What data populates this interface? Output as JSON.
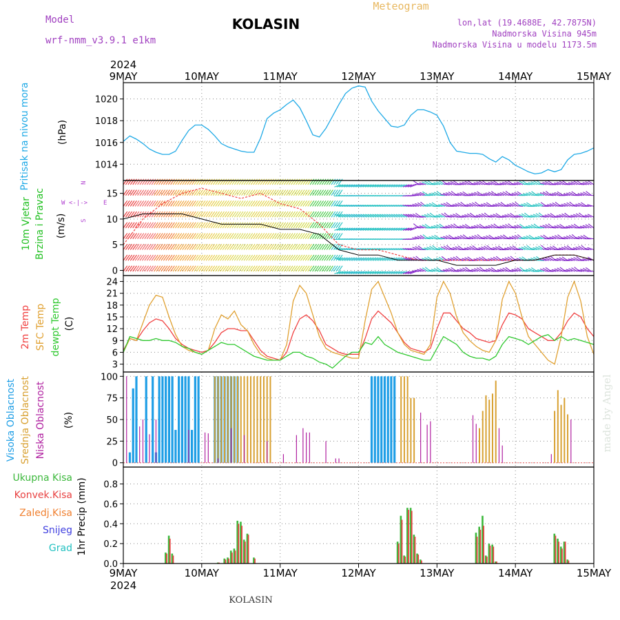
{
  "header": {
    "model_label": "Model",
    "model_name": "wrf-nmm_v3.9.1 e1km",
    "station": "KOLASIN",
    "product": "Meteogram",
    "lonlat": "lon,lat (19.4688E, 42.7875N)",
    "altitude": "Nadmorska Visina 945m",
    "model_altitude": "Nadmorska Visina u modelu 1173.5m",
    "year": "2024",
    "footer_station": "KOLASIN",
    "watermark": "made by Angel"
  },
  "colors": {
    "pressure": "#1ea9e6",
    "temp2m": "#f04040",
    "sfc": "#e0a030",
    "dewpt": "#2ec82e",
    "high_cloud": "#1e9ee6",
    "mid_cloud": "#d8a030",
    "low_cloud": "#b020a0",
    "total_precip": "#3cb83c",
    "conv_precip": "#e84040",
    "frozen_precip": "#f08030",
    "snow": "#4040e0",
    "graupel": "#20c0c0",
    "wind_label": "#22c022",
    "compass": "#b040d0",
    "meta": "#a040c0",
    "product": "#e8b860"
  },
  "chart_data": [
    {
      "type": "line",
      "panel": "pressure",
      "ylabel_series": "Pritisak na nivou mora",
      "ylabel_unit": "(hPa)",
      "ylim": [
        1012.5,
        1021.5
      ],
      "yticks": [
        1014,
        1016,
        1018,
        1020
      ],
      "xlim": [
        0,
        144
      ],
      "xticks": [
        "9MAY",
        "10MAY",
        "11MAY",
        "12MAY",
        "13MAY",
        "14MAY",
        "15MAY"
      ],
      "grid": true,
      "x": [
        0,
        2,
        4,
        6,
        8,
        10,
        12,
        14,
        16,
        18,
        20,
        22,
        24,
        26,
        28,
        30,
        32,
        34,
        36,
        38,
        40,
        42,
        44,
        46,
        48,
        50,
        52,
        54,
        56,
        58,
        60,
        62,
        64,
        66,
        68,
        70,
        72,
        74,
        76,
        78,
        80,
        82,
        84,
        86,
        88,
        90,
        92,
        94,
        96,
        98,
        100,
        102,
        104,
        106,
        108,
        110,
        112,
        114,
        116,
        118,
        120,
        122,
        124,
        126,
        128,
        130,
        132,
        134,
        136,
        138,
        140,
        142,
        144
      ],
      "values": [
        1016.1,
        1016.6,
        1016.3,
        1015.9,
        1015.4,
        1015.1,
        1014.9,
        1014.9,
        1015.2,
        1016.2,
        1017.1,
        1017.6,
        1017.6,
        1017.2,
        1016.6,
        1015.9,
        1015.6,
        1015.4,
        1015.2,
        1015.1,
        1015.1,
        1016.4,
        1018.2,
        1018.7,
        1019.0,
        1019.5,
        1019.9,
        1019.2,
        1018.0,
        1016.7,
        1016.5,
        1017.3,
        1018.4,
        1019.5,
        1020.5,
        1021.0,
        1021.2,
        1021.1,
        1019.8,
        1018.9,
        1018.2,
        1017.5,
        1017.4,
        1017.6,
        1018.5,
        1019.0,
        1019.0,
        1018.8,
        1018.5,
        1017.5,
        1016.0,
        1015.2,
        1015.1,
        1015.0,
        1015.0,
        1014.9,
        1014.5,
        1014.2,
        1014.7,
        1014.4,
        1013.9,
        1013.6,
        1013.3,
        1013.1,
        1013.2,
        1013.5,
        1013.3,
        1013.5,
        1014.4,
        1014.9,
        1015.0,
        1015.2,
        1015.5
      ]
    },
    {
      "type": "line",
      "panel": "wind",
      "ylabel_series": [
        "10m Vjetar",
        "Brzina i Pravac"
      ],
      "ylabel_unit": "(m/s)",
      "compass_labels": [
        "W",
        "<-|->",
        "E",
        "S",
        "N"
      ],
      "ylim": [
        -1,
        17.5
      ],
      "yticks": [
        0,
        5,
        10,
        15
      ],
      "xlim": [
        0,
        144
      ],
      "grid": true,
      "x": [
        0,
        6,
        12,
        18,
        24,
        30,
        36,
        42,
        48,
        54,
        60,
        66,
        72,
        78,
        84,
        90,
        96,
        102,
        108,
        114,
        120,
        126,
        132,
        138,
        144
      ],
      "series": [
        {
          "key": "gust",
          "values": [
            5,
            10,
            13,
            15,
            16,
            15,
            14,
            15,
            13,
            12,
            9,
            5,
            4,
            4,
            3,
            2,
            2,
            2,
            2,
            2,
            2,
            2,
            3,
            3,
            2
          ]
        },
        {
          "key": "speed",
          "values": [
            10,
            11,
            11,
            11,
            10,
            9,
            9,
            9,
            8,
            8,
            7,
            4,
            3,
            3,
            2,
            2,
            2,
            1,
            1,
            1,
            2,
            2,
            3,
            3,
            2
          ]
        }
      ],
      "barb_colors": [
        "#e83030",
        "#f06060",
        "#f07830",
        "#f0a030",
        "#e8c840",
        "#e0d040",
        "#d8d850",
        "#e0d040",
        "#d0d040",
        "#d0d840",
        "#40c840",
        "#20c0c0",
        "#20b8c8",
        "#20c0c0",
        "#30c0c8",
        "#8020c8",
        "#20c0c0",
        "#8020c8",
        "#8020c8",
        "#8020c8",
        "#8020c8",
        "#20c0c0",
        "#8020c8",
        "#8020c8",
        "#8020c8"
      ]
    },
    {
      "type": "line",
      "panel": "temperature",
      "ylabel_series": [
        "2m Temp",
        "SFC Temp",
        "dewpt Temp"
      ],
      "ylabel_unit": "(C)",
      "ylim": [
        1,
        25.5
      ],
      "yticks": [
        3,
        6,
        9,
        12,
        15,
        18,
        21,
        24
      ],
      "xlim": [
        0,
        144
      ],
      "grid": true,
      "x": [
        0,
        2,
        4,
        6,
        8,
        10,
        12,
        14,
        16,
        18,
        20,
        22,
        24,
        26,
        28,
        30,
        32,
        34,
        36,
        38,
        40,
        42,
        44,
        46,
        48,
        50,
        52,
        54,
        56,
        58,
        60,
        62,
        64,
        66,
        68,
        70,
        72,
        74,
        76,
        78,
        80,
        82,
        84,
        86,
        88,
        90,
        92,
        94,
        96,
        98,
        100,
        102,
        104,
        106,
        108,
        110,
        112,
        114,
        116,
        118,
        120,
        122,
        124,
        126,
        128,
        130,
        132,
        134,
        136,
        138,
        140,
        142,
        144
      ],
      "series": [
        {
          "name": "2m Temp",
          "key": "temp2m",
          "values": [
            6.5,
            9.5,
            9.0,
            11.5,
            13.5,
            14.5,
            14.0,
            12.0,
            9.5,
            8.0,
            7.0,
            6.5,
            6.0,
            6.5,
            8.5,
            11.0,
            12.0,
            12.0,
            11.5,
            11.5,
            9.0,
            6.5,
            5.0,
            4.5,
            4.0,
            6.0,
            11.0,
            14.5,
            15.5,
            14.0,
            11.5,
            8.0,
            7.0,
            6.0,
            5.5,
            5.5,
            5.5,
            9.5,
            14.5,
            16.5,
            15.0,
            13.5,
            11.0,
            8.5,
            7.0,
            6.5,
            6.0,
            7.0,
            12.0,
            16.0,
            16.0,
            14.0,
            12.0,
            11.0,
            9.5,
            9.0,
            8.5,
            9.0,
            13.0,
            16.0,
            15.5,
            14.5,
            12.0,
            11.0,
            10.0,
            9.0,
            9.0,
            11.0,
            14.0,
            16.0,
            15.0,
            12.0,
            10.0
          ]
        },
        {
          "name": "SFC Temp",
          "key": "sfc",
          "values": [
            6.0,
            9.5,
            9.0,
            13.5,
            18.0,
            20.5,
            20.0,
            15.0,
            10.5,
            7.5,
            6.5,
            6.0,
            5.5,
            6.5,
            12.0,
            15.5,
            14.5,
            16.5,
            13.0,
            11.5,
            8.0,
            5.5,
            4.5,
            4.0,
            4.0,
            8.0,
            19.0,
            23.0,
            21.0,
            15.5,
            10.0,
            7.0,
            6.0,
            5.5,
            5.0,
            4.5,
            4.5,
            14.0,
            22.0,
            24.0,
            20.0,
            16.0,
            11.0,
            8.0,
            6.5,
            6.0,
            5.5,
            8.0,
            20.0,
            24.0,
            21.0,
            15.0,
            11.0,
            9.0,
            7.5,
            6.5,
            6.0,
            9.0,
            19.5,
            24.0,
            21.0,
            15.0,
            10.0,
            8.0,
            6.0,
            4.0,
            3.0,
            10.0,
            20.0,
            24.0,
            19.0,
            10.0,
            5.5
          ]
        },
        {
          "name": "dewpt Temp",
          "key": "dewpt",
          "values": [
            6.0,
            10.0,
            9.5,
            9.0,
            9.0,
            9.5,
            9.0,
            9.0,
            8.5,
            7.5,
            7.0,
            6.0,
            5.5,
            6.5,
            7.5,
            8.5,
            8.0,
            8.0,
            7.0,
            6.0,
            5.0,
            4.5,
            4.0,
            4.0,
            4.0,
            5.0,
            6.0,
            6.0,
            5.0,
            4.5,
            3.5,
            3.0,
            2.0,
            3.5,
            5.0,
            6.0,
            6.0,
            8.5,
            8.0,
            10.0,
            8.0,
            7.0,
            6.0,
            5.5,
            5.0,
            4.5,
            4.0,
            4.0,
            7.0,
            10.0,
            9.0,
            8.0,
            6.0,
            5.0,
            4.5,
            4.5,
            4.0,
            5.0,
            8.0,
            10.0,
            9.5,
            9.0,
            8.0,
            9.0,
            10.0,
            10.5,
            9.0,
            10.0,
            9.0,
            9.5,
            9.0,
            8.5,
            8.0
          ]
        }
      ]
    },
    {
      "type": "bar",
      "panel": "clouds",
      "ylabel_series": [
        "Visoka Oblacnost",
        "Srednja Oblacnost",
        "Niska Oblacnost"
      ],
      "ylabel_unit": "(%)",
      "ylim": [
        -5,
        105
      ],
      "yticks": [
        0,
        25,
        50,
        75,
        100
      ],
      "xlim": [
        0,
        144
      ],
      "grid": true,
      "series": [
        {
          "name": "Visoka Oblacnost",
          "key": "high_cloud",
          "x": [
            2,
            3,
            4,
            7,
            9,
            10,
            11,
            12,
            13,
            14,
            15,
            16,
            17,
            18,
            19,
            20,
            21,
            22,
            23,
            28,
            29,
            30,
            31,
            32,
            33,
            34,
            35,
            76,
            77,
            78,
            79,
            80,
            81,
            82,
            83
          ],
          "values": [
            12,
            86,
            100,
            100,
            100,
            12,
            100,
            100,
            100,
            100,
            100,
            38,
            100,
            100,
            100,
            100,
            38,
            100,
            100,
            100,
            100,
            100,
            100,
            100,
            100,
            100,
            100,
            100,
            100,
            100,
            100,
            100,
            100,
            100,
            100
          ]
        },
        {
          "name": "Srednja Oblacnost",
          "key": "mid_cloud",
          "x": [
            28,
            29,
            30,
            31,
            32,
            33,
            34,
            35,
            36,
            37,
            38,
            39,
            40,
            41,
            42,
            43,
            44,
            45,
            85,
            86,
            87,
            88,
            89,
            109,
            110,
            111,
            112,
            113,
            114,
            132,
            133,
            134,
            135,
            136
          ],
          "values": [
            100,
            100,
            100,
            100,
            100,
            100,
            100,
            100,
            100,
            100,
            100,
            100,
            100,
            100,
            100,
            100,
            100,
            100,
            100,
            100,
            100,
            75,
            75,
            40,
            60,
            78,
            73,
            80,
            95,
            60,
            84,
            67,
            75,
            56
          ]
        },
        {
          "name": "Niska Oblacnost",
          "key": "low_cloud",
          "x": [
            1,
            5,
            6,
            8,
            10,
            20,
            25,
            26,
            29,
            33,
            37,
            44,
            49,
            53,
            55,
            56,
            57,
            62,
            65,
            66,
            91,
            93,
            94,
            107,
            108,
            115,
            116,
            131,
            137
          ],
          "values": [
            100,
            42,
            50,
            33,
            50,
            38,
            35,
            34,
            5,
            40,
            32,
            25,
            10,
            32,
            40,
            35,
            35,
            25,
            5,
            5,
            58,
            44,
            48,
            55,
            45,
            40,
            20,
            10,
            50
          ]
        }
      ]
    },
    {
      "type": "bar",
      "panel": "precip",
      "ylabel_series": [
        "Ukupna Kisa",
        "Konvek.Kisa",
        "Zaledj.Kisa",
        "Snijeg",
        "Grad"
      ],
      "ylabel_unit": "1hr Precip (mm)",
      "ylim": [
        0,
        0.97
      ],
      "yticks": [
        0.0,
        0.2,
        0.4,
        0.6,
        0.8
      ],
      "xlim": [
        0,
        144
      ],
      "grid": true,
      "series": [
        {
          "name": "Ukupna Kisa",
          "key": "total_precip",
          "x": [
            13,
            14,
            15,
            29,
            31,
            32,
            33,
            34,
            35,
            36,
            37,
            38,
            40,
            84,
            85,
            86,
            87,
            88,
            89,
            90,
            91,
            108,
            109,
            110,
            111,
            112,
            113,
            114,
            132,
            133,
            134,
            135,
            136
          ],
          "values": [
            0.11,
            0.28,
            0.1,
            0.01,
            0.05,
            0.06,
            0.13,
            0.15,
            0.43,
            0.42,
            0.24,
            0.3,
            0.06,
            0.22,
            0.48,
            0.08,
            0.56,
            0.56,
            0.29,
            0.1,
            0.04,
            0.31,
            0.37,
            0.48,
            0.08,
            0.2,
            0.19,
            0.02,
            0.3,
            0.25,
            0.17,
            0.22,
            0.04
          ]
        },
        {
          "name": "Konvek.Kisa",
          "key": "conv_precip",
          "x": [
            13,
            14,
            15,
            29,
            31,
            32,
            33,
            34,
            35,
            36,
            37,
            38,
            40,
            84,
            85,
            86,
            87,
            88,
            89,
            90,
            91,
            108,
            109,
            110,
            111,
            112,
            113,
            114,
            132,
            133,
            134,
            135,
            136
          ],
          "values": [
            0.1,
            0.25,
            0.08,
            0.01,
            0.04,
            0.05,
            0.11,
            0.13,
            0.4,
            0.38,
            0.22,
            0.29,
            0.05,
            0.2,
            0.44,
            0.07,
            0.54,
            0.53,
            0.27,
            0.09,
            0.03,
            0.27,
            0.34,
            0.38,
            0.07,
            0.18,
            0.17,
            0.02,
            0.28,
            0.22,
            0.15,
            0.22,
            0.03
          ]
        }
      ]
    }
  ],
  "attribution": "made by Angel"
}
